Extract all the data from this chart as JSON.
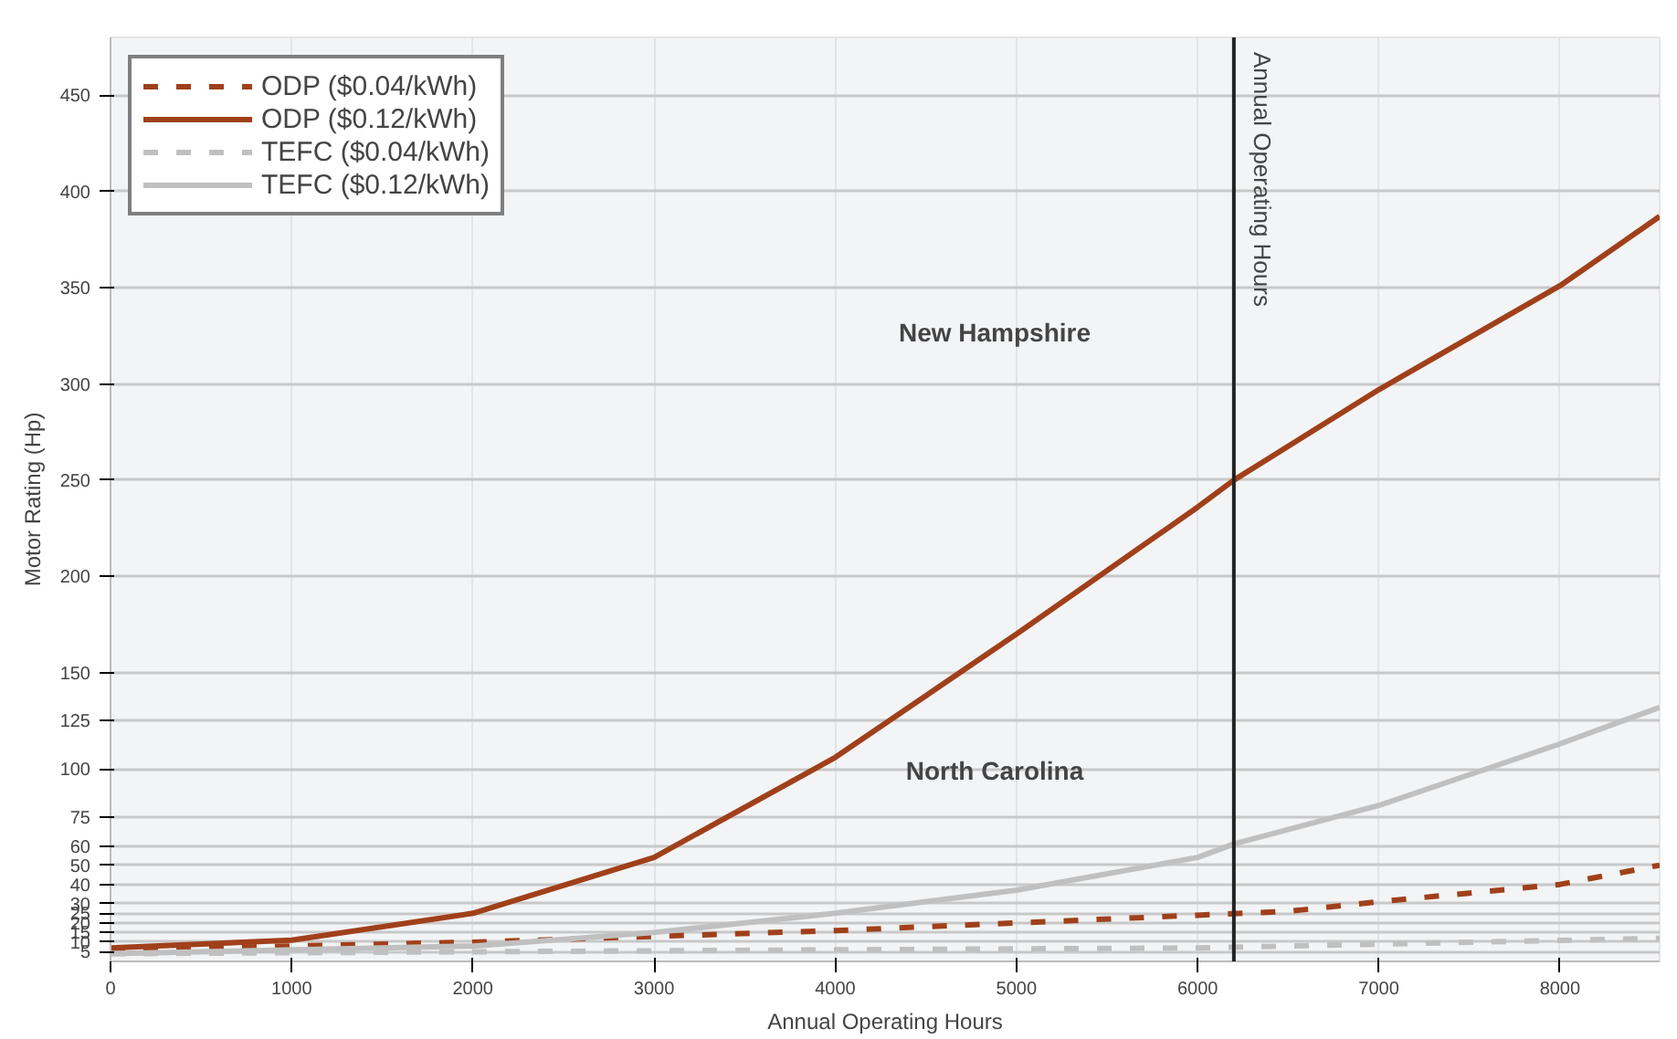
{
  "chart_data": {
    "type": "line",
    "xlabel": "Annual Operating Hours",
    "ylabel": "Motor Rating (Hp)",
    "xlim": [
      0,
      8550
    ],
    "xticks": [
      0,
      1000,
      2000,
      3000,
      4000,
      5000,
      6000,
      7000,
      8000
    ],
    "ylim": [
      0,
      480
    ],
    "yticks": [
      5,
      10,
      15,
      20,
      25,
      30,
      40,
      50,
      60,
      75,
      100,
      125,
      150,
      200,
      250,
      300,
      350,
      400,
      450
    ],
    "grid": true,
    "legend": "top left",
    "series": [
      {
        "name": "ODP ($0.04/kWh)",
        "color": "#a0401a",
        "line_style": "dashed",
        "x": [
          0,
          2000,
          3000,
          4000,
          5000,
          6000,
          6500,
          7000,
          8000,
          8550
        ],
        "values": [
          6,
          10,
          13,
          16,
          20,
          24,
          26,
          31,
          40,
          50
        ]
      },
      {
        "name": "ODP ($0.12/kWh)",
        "color": "#a0401a",
        "line_style": "solid",
        "x": [
          0,
          1000,
          2000,
          3000,
          4000,
          5000,
          6000,
          6200,
          7000,
          8000,
          8550
        ],
        "values": [
          7,
          11,
          25,
          54,
          106,
          170,
          236,
          250,
          297,
          351,
          387
        ]
      },
      {
        "name": "TEFC ($0.04/kWh)",
        "color": "#c0c0c0",
        "line_style": "dashed",
        "x": [
          0,
          4000,
          6000,
          8550
        ],
        "values": [
          4,
          6,
          7,
          12
        ]
      },
      {
        "name": "TEFC ($0.12/kWh)",
        "color": "#c0c0c0",
        "line_style": "solid",
        "x": [
          0,
          2000,
          3000,
          4000,
          5000,
          6000,
          6200,
          7000,
          8000,
          8550
        ],
        "values": [
          4,
          8,
          15,
          25,
          37,
          54,
          61,
          81,
          113,
          132
        ]
      }
    ],
    "ref_lines": [
      {
        "axis": "x",
        "value": 6200,
        "label": "Annual Operating Hours",
        "color": "#222222"
      }
    ],
    "annotations": [
      "New Hampshire",
      "North Carolina"
    ]
  }
}
